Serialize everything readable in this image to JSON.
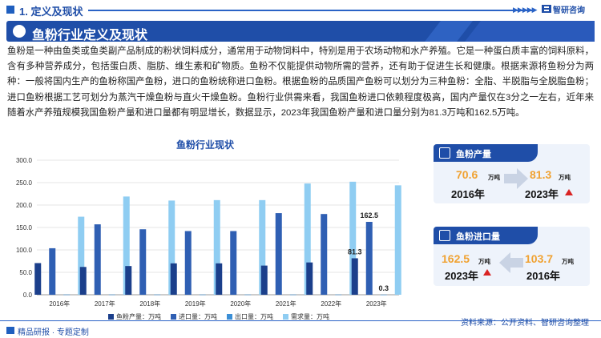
{
  "header": {
    "section_title": "1. 定义及现状",
    "brand": "智研咨询"
  },
  "banner": {
    "title": "鱼粉行业定义及现状"
  },
  "paragraph": "鱼粉是一种由鱼类或鱼类副产品制成的粉状饲料成分，通常用于动物饲料中，特别是用于农场动物和水产养殖。它是一种蛋白质丰富的饲料原料，含有多种营养成分，包括蛋白质、脂肪、维生素和矿物质。鱼粉不仅能提供动物所需的营养，还有助于促进生长和健康。根据来源将鱼粉分为两种：一般将国内生产的鱼粉称国产鱼粉，进口的鱼粉统称进口鱼粉。根据鱼粉的品质国产鱼粉可以划分为三种鱼粉：全脂、半脱脂与全脱脂鱼粉；进口鱼粉根据工艺可划分为蒸汽干燥鱼粉与直火干燥鱼粉。鱼粉行业供需来看，我国鱼粉进口依赖程度极高，国内产量仅在3分之一左右，近年来随着水产养殖规模我国鱼粉产量和进口量都有明显增长，数据显示，2023年我国鱼粉产量和进口量分别为81.3万吨和162.5万吨。",
  "chart_data": {
    "type": "bar",
    "title": "鱼粉行业现状",
    "categories": [
      "2016年",
      "2017年",
      "2018年",
      "2019年",
      "2020年",
      "2021年",
      "2022年",
      "2023年"
    ],
    "series": [
      {
        "name": "鱼粉产量：万吨",
        "color": "#1b3f8b",
        "values": [
          70.6,
          62,
          64,
          70,
          70,
          65,
          72,
          81.3
        ]
      },
      {
        "name": "进口量：万吨",
        "color": "#2f5fb3",
        "values": [
          103.7,
          157,
          146,
          142,
          142,
          182,
          180,
          162.5
        ]
      },
      {
        "name": "出口量：万吨",
        "color": "#3c8fd6",
        "values": [
          0.5,
          0.5,
          0.5,
          0.5,
          0.5,
          0.5,
          0.5,
          0.3
        ]
      },
      {
        "name": "需求量：万吨",
        "color": "#8fcdf2",
        "values": [
          174,
          219,
          210,
          211,
          211,
          248,
          252,
          244
        ]
      }
    ],
    "ylim": [
      0,
      300
    ],
    "yticks": [
      "0.0",
      "50.0",
      "100.0",
      "150.0",
      "200.0",
      "250.0",
      "300.0"
    ],
    "data_labels": [
      {
        "series": 1,
        "index": 7,
        "text": "162.5"
      },
      {
        "series": 0,
        "index": 7,
        "text": "81.3"
      },
      {
        "series": 2,
        "index": 7,
        "text": "0.3"
      }
    ],
    "grid": true,
    "legend": "bottom"
  },
  "cards": {
    "production": {
      "title": "鱼粉产量",
      "left_value": "70.6",
      "left_unit": "万吨",
      "left_year": "2016年",
      "right_value": "81.3",
      "right_unit": "万吨",
      "right_year": "2023年"
    },
    "import": {
      "title": "鱼粉进口量",
      "left_value": "162.5",
      "left_unit": "万吨",
      "left_year": "2023年",
      "right_value": "103.7",
      "right_unit": "万吨",
      "right_year": "2016年"
    }
  },
  "footer": {
    "left": "精品研报 · 专题定制",
    "source": "资料来源：公开资料、智研咨询整理"
  },
  "colors": {
    "brand": "#1f4ea8",
    "accent": "#f0a232",
    "up_arrow": "#d92323"
  }
}
